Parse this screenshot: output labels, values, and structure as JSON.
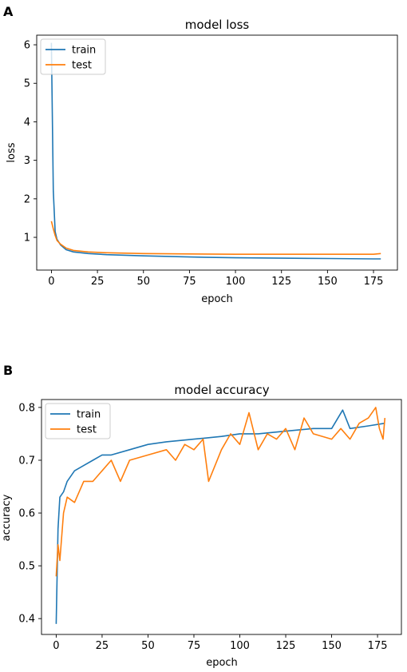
{
  "colors": {
    "train": "#1f77b4",
    "test": "#ff7f0e"
  },
  "chart_data": [
    {
      "panel": "A",
      "type": "line",
      "title": "model loss",
      "xlabel": "epoch",
      "ylabel": "loss",
      "xlim": [
        -8,
        188
      ],
      "ylim": [
        0.15,
        6.25
      ],
      "xticks": [
        0,
        25,
        50,
        75,
        100,
        125,
        150,
        175
      ],
      "yticks": [
        1,
        2,
        3,
        4,
        5,
        6
      ],
      "grid": false,
      "legend_position": "top-left",
      "series": [
        {
          "name": "train",
          "color": "#1f77b4",
          "points": [
            [
              0,
              6.05
            ],
            [
              1,
              2.2
            ],
            [
              2,
              1.15
            ],
            [
              3,
              0.95
            ],
            [
              5,
              0.8
            ],
            [
              8,
              0.68
            ],
            [
              12,
              0.62
            ],
            [
              20,
              0.58
            ],
            [
              30,
              0.55
            ],
            [
              50,
              0.52
            ],
            [
              75,
              0.49
            ],
            [
              100,
              0.47
            ],
            [
              125,
              0.46
            ],
            [
              150,
              0.45
            ],
            [
              175,
              0.44
            ],
            [
              179,
              0.44
            ]
          ]
        },
        {
          "name": "test",
          "color": "#ff7f0e",
          "points": [
            [
              0,
              1.42
            ],
            [
              1,
              1.22
            ],
            [
              2,
              1.05
            ],
            [
              3,
              0.92
            ],
            [
              5,
              0.82
            ],
            [
              8,
              0.72
            ],
            [
              12,
              0.66
            ],
            [
              20,
              0.62
            ],
            [
              30,
              0.6
            ],
            [
              50,
              0.58
            ],
            [
              75,
              0.57
            ],
            [
              100,
              0.56
            ],
            [
              125,
              0.56
            ],
            [
              150,
              0.56
            ],
            [
              175,
              0.56
            ],
            [
              179,
              0.58
            ]
          ]
        }
      ]
    },
    {
      "panel": "B",
      "type": "line",
      "title": "model accuracy",
      "xlabel": "epoch",
      "ylabel": "accuracy",
      "xlim": [
        -8,
        188
      ],
      "ylim": [
        0.37,
        0.815
      ],
      "xticks": [
        0,
        25,
        50,
        75,
        100,
        125,
        150,
        175
      ],
      "yticks": [
        0.4,
        0.5,
        0.6,
        0.7,
        0.8
      ],
      "yformat": "0.1",
      "grid": false,
      "legend_position": "top-left",
      "series": [
        {
          "name": "train",
          "color": "#1f77b4",
          "points": [
            [
              0,
              0.39
            ],
            [
              1,
              0.57
            ],
            [
              2,
              0.63
            ],
            [
              4,
              0.64
            ],
            [
              6,
              0.66
            ],
            [
              10,
              0.68
            ],
            [
              15,
              0.69
            ],
            [
              20,
              0.7
            ],
            [
              25,
              0.71
            ],
            [
              30,
              0.71
            ],
            [
              40,
              0.72
            ],
            [
              50,
              0.73
            ],
            [
              60,
              0.735
            ],
            [
              75,
              0.74
            ],
            [
              90,
              0.745
            ],
            [
              100,
              0.75
            ],
            [
              110,
              0.75
            ],
            [
              125,
              0.755
            ],
            [
              140,
              0.76
            ],
            [
              150,
              0.76
            ],
            [
              156,
              0.795
            ],
            [
              160,
              0.76
            ],
            [
              170,
              0.765
            ],
            [
              179,
              0.77
            ]
          ]
        },
        {
          "name": "test",
          "color": "#ff7f0e",
          "points": [
            [
              0,
              0.48
            ],
            [
              1,
              0.54
            ],
            [
              2,
              0.51
            ],
            [
              4,
              0.6
            ],
            [
              6,
              0.63
            ],
            [
              10,
              0.62
            ],
            [
              15,
              0.66
            ],
            [
              20,
              0.66
            ],
            [
              25,
              0.68
            ],
            [
              30,
              0.7
            ],
            [
              35,
              0.66
            ],
            [
              40,
              0.7
            ],
            [
              50,
              0.71
            ],
            [
              60,
              0.72
            ],
            [
              65,
              0.7
            ],
            [
              70,
              0.73
            ],
            [
              75,
              0.72
            ],
            [
              80,
              0.74
            ],
            [
              83,
              0.66
            ],
            [
              90,
              0.72
            ],
            [
              95,
              0.75
            ],
            [
              100,
              0.73
            ],
            [
              105,
              0.79
            ],
            [
              110,
              0.72
            ],
            [
              115,
              0.75
            ],
            [
              120,
              0.74
            ],
            [
              125,
              0.76
            ],
            [
              130,
              0.72
            ],
            [
              135,
              0.78
            ],
            [
              140,
              0.75
            ],
            [
              150,
              0.74
            ],
            [
              155,
              0.76
            ],
            [
              160,
              0.74
            ],
            [
              165,
              0.77
            ],
            [
              170,
              0.78
            ],
            [
              174,
              0.8
            ],
            [
              176,
              0.76
            ],
            [
              178,
              0.74
            ],
            [
              179,
              0.78
            ]
          ]
        }
      ]
    }
  ]
}
